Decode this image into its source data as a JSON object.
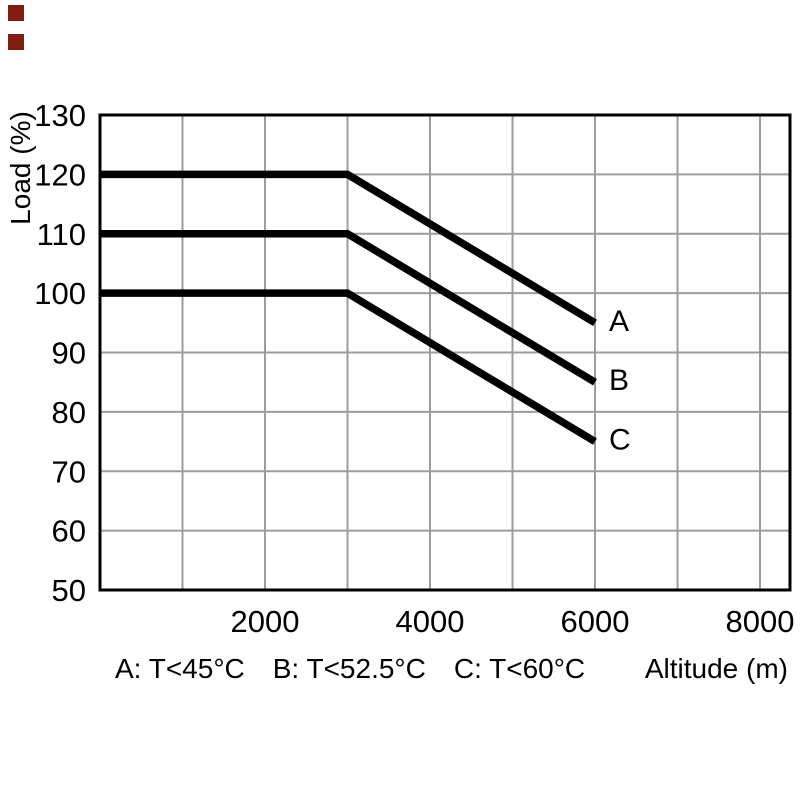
{
  "brand": {
    "color": "#7f1d12"
  },
  "chart_data": {
    "type": "line",
    "title": "",
    "xlabel": "Altitude (m)",
    "ylabel": "Load (%)",
    "xlim": [
      0,
      8000
    ],
    "ylim": [
      50,
      130
    ],
    "x_ticks": [
      2000,
      4000,
      6000,
      8000
    ],
    "y_ticks": [
      50,
      60,
      70,
      80,
      90,
      100,
      110,
      120,
      130
    ],
    "x_grid_step": 1000,
    "y_grid_step": 10,
    "grid": true,
    "grid_color": "#9c9c9c",
    "line_color": "#000000",
    "legend_position": "bottom",
    "series": [
      {
        "name": "A",
        "condition": "A: T<45°C",
        "x": [
          0,
          3000,
          6000
        ],
        "y": [
          120,
          120,
          95
        ]
      },
      {
        "name": "B",
        "condition": "B: T<52.5°C",
        "x": [
          0,
          3000,
          6000
        ],
        "y": [
          110,
          110,
          85
        ]
      },
      {
        "name": "C",
        "condition": "C: T<60°C",
        "x": [
          0,
          3000,
          6000
        ],
        "y": [
          100,
          100,
          75
        ]
      }
    ]
  }
}
